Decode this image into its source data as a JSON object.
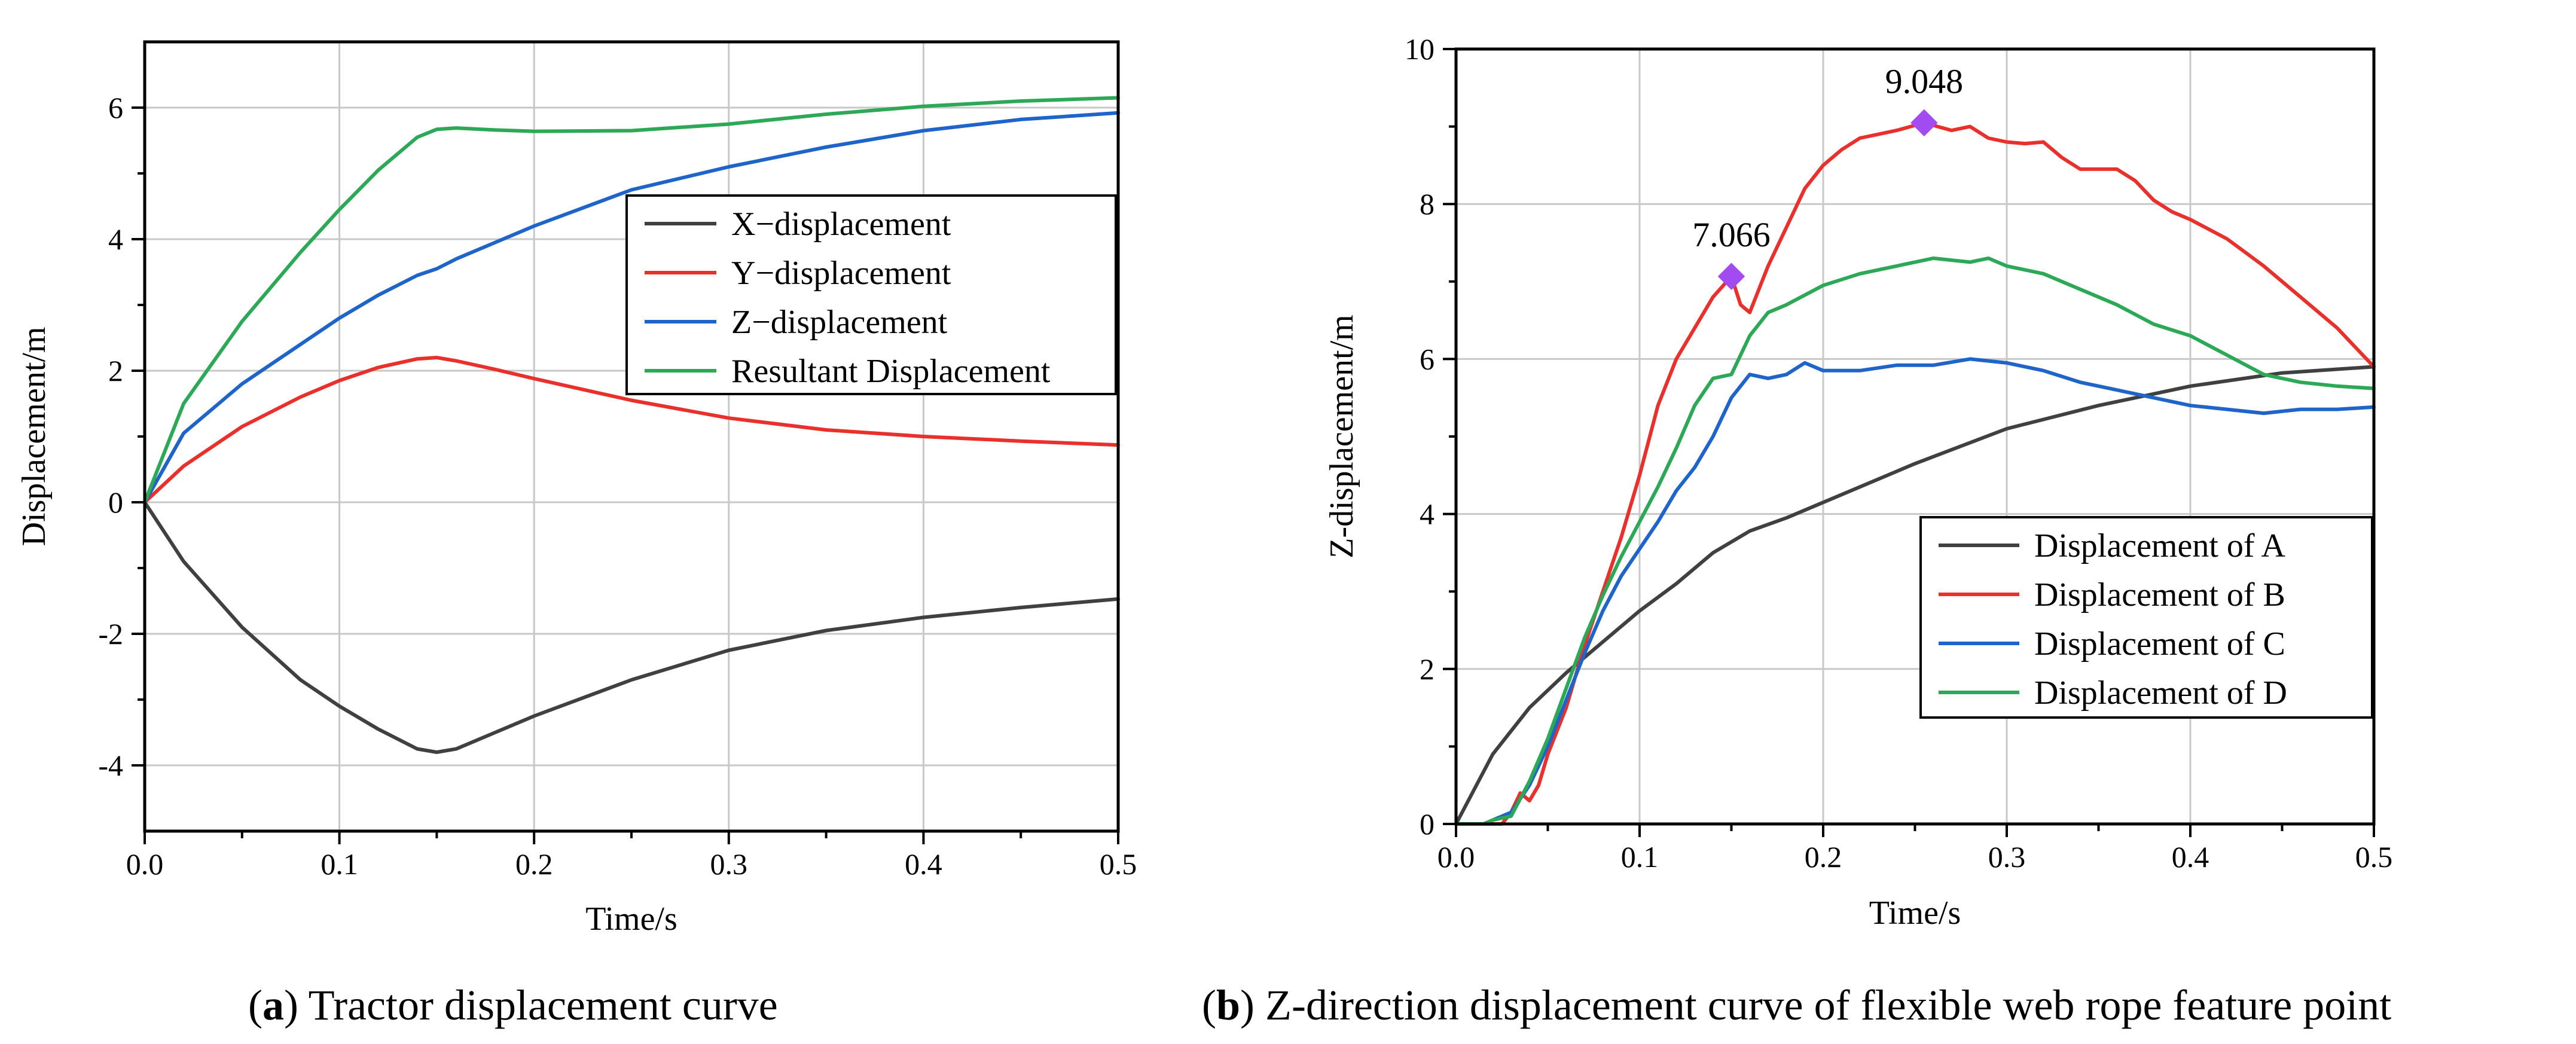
{
  "figure": {
    "caption_a": {
      "letter": "a",
      "text": "Tractor displacement curve"
    },
    "caption_b": {
      "letter": "b",
      "text": "Z-direction displacement curve of flexible web rope feature point"
    }
  },
  "chart_data": [
    {
      "id": "a",
      "type": "line",
      "title": "",
      "xlabel": "Time/s",
      "ylabel": "Displacement/m",
      "xlim": [
        0,
        0.5
      ],
      "ylim": [
        -5,
        7
      ],
      "xticks": [
        0.0,
        0.1,
        0.2,
        0.3,
        0.4,
        0.5
      ],
      "xtick_labels": [
        "0.0",
        "0.1",
        "0.2",
        "0.3",
        "0.4",
        "0.5"
      ],
      "yticks": [
        -4,
        -2,
        0,
        2,
        4,
        6
      ],
      "ytick_labels": [
        "-4",
        "-2",
        "0",
        "2",
        "4",
        "6"
      ],
      "grid": true,
      "legend_position": "center-right",
      "series": [
        {
          "name": "X−displacement",
          "color": "#404040",
          "x": [
            0,
            0.02,
            0.05,
            0.08,
            0.1,
            0.12,
            0.14,
            0.15,
            0.16,
            0.18,
            0.2,
            0.25,
            0.3,
            0.35,
            0.4,
            0.45,
            0.5
          ],
          "y": [
            0,
            -0.9,
            -1.9,
            -2.7,
            -3.1,
            -3.45,
            -3.75,
            -3.8,
            -3.75,
            -3.5,
            -3.25,
            -2.7,
            -2.25,
            -1.95,
            -1.75,
            -1.6,
            -1.47
          ]
        },
        {
          "name": "Y−displacement",
          "color": "#e8302c",
          "x": [
            0,
            0.02,
            0.05,
            0.08,
            0.1,
            0.12,
            0.14,
            0.15,
            0.16,
            0.18,
            0.2,
            0.25,
            0.3,
            0.35,
            0.4,
            0.45,
            0.5
          ],
          "y": [
            0,
            0.55,
            1.15,
            1.6,
            1.85,
            2.05,
            2.18,
            2.2,
            2.15,
            2.02,
            1.88,
            1.55,
            1.28,
            1.1,
            1.0,
            0.93,
            0.87
          ]
        },
        {
          "name": "Z−displacement",
          "color": "#1f64c8",
          "x": [
            0,
            0.02,
            0.05,
            0.08,
            0.1,
            0.12,
            0.14,
            0.15,
            0.16,
            0.18,
            0.2,
            0.25,
            0.3,
            0.35,
            0.4,
            0.45,
            0.5
          ],
          "y": [
            0,
            1.05,
            1.8,
            2.4,
            2.8,
            3.15,
            3.45,
            3.55,
            3.7,
            3.95,
            4.2,
            4.75,
            5.1,
            5.4,
            5.65,
            5.82,
            5.92
          ]
        },
        {
          "name": "Resultant Displacement",
          "color": "#2da857",
          "x": [
            0,
            0.02,
            0.05,
            0.08,
            0.1,
            0.12,
            0.14,
            0.15,
            0.16,
            0.18,
            0.2,
            0.25,
            0.3,
            0.35,
            0.4,
            0.45,
            0.5
          ],
          "y": [
            0,
            1.5,
            2.75,
            3.8,
            4.45,
            5.05,
            5.55,
            5.67,
            5.69,
            5.66,
            5.64,
            5.65,
            5.75,
            5.9,
            6.02,
            6.1,
            6.15
          ]
        }
      ]
    },
    {
      "id": "b",
      "type": "line",
      "title": "",
      "xlabel": "Time/s",
      "ylabel": "Z-displacement/m",
      "xlim": [
        0,
        0.5
      ],
      "ylim": [
        0,
        10
      ],
      "xticks": [
        0.0,
        0.1,
        0.2,
        0.3,
        0.4,
        0.5
      ],
      "xtick_labels": [
        "0.0",
        "0.1",
        "0.2",
        "0.3",
        "0.4",
        "0.5"
      ],
      "yticks": [
        0,
        2,
        4,
        6,
        8,
        10
      ],
      "ytick_labels": [
        "0",
        "2",
        "4",
        "6",
        "8",
        "10"
      ],
      "grid": true,
      "legend_position": "bottom-right",
      "annotations": [
        {
          "x": 0.15,
          "y": 7.066,
          "label": "7.066",
          "color": "#a24bf0"
        },
        {
          "x": 0.255,
          "y": 9.048,
          "label": "9.048",
          "color": "#a24bf0"
        }
      ],
      "series": [
        {
          "name": "Displacement of A",
          "color": "#404040",
          "x": [
            0,
            0.02,
            0.04,
            0.06,
            0.08,
            0.1,
            0.12,
            0.14,
            0.16,
            0.18,
            0.2,
            0.25,
            0.3,
            0.35,
            0.4,
            0.45,
            0.5
          ],
          "y": [
            0,
            0.9,
            1.5,
            1.95,
            2.35,
            2.75,
            3.1,
            3.5,
            3.78,
            3.95,
            4.15,
            4.65,
            5.1,
            5.4,
            5.65,
            5.82,
            5.9
          ]
        },
        {
          "name": "Displacement of B",
          "color": "#e8302c",
          "x": [
            0,
            0.025,
            0.03,
            0.035,
            0.04,
            0.045,
            0.05,
            0.06,
            0.07,
            0.08,
            0.09,
            0.1,
            0.11,
            0.12,
            0.13,
            0.14,
            0.15,
            0.155,
            0.16,
            0.165,
            0.17,
            0.18,
            0.19,
            0.2,
            0.21,
            0.22,
            0.23,
            0.24,
            0.255,
            0.27,
            0.28,
            0.29,
            0.3,
            0.31,
            0.32,
            0.33,
            0.34,
            0.36,
            0.37,
            0.38,
            0.39,
            0.4,
            0.42,
            0.44,
            0.46,
            0.48,
            0.5
          ],
          "y": [
            0,
            0,
            0.15,
            0.4,
            0.3,
            0.5,
            0.9,
            1.5,
            2.3,
            3.0,
            3.7,
            4.5,
            5.4,
            6.0,
            6.4,
            6.8,
            7.066,
            6.7,
            6.6,
            6.9,
            7.2,
            7.7,
            8.2,
            8.5,
            8.7,
            8.85,
            8.9,
            8.95,
            9.048,
            8.95,
            9.0,
            8.85,
            8.8,
            8.78,
            8.8,
            8.6,
            8.45,
            8.45,
            8.3,
            8.05,
            7.9,
            7.8,
            7.55,
            7.2,
            6.8,
            6.4,
            5.9
          ]
        },
        {
          "name": "Displacement of C",
          "color": "#1f64c8",
          "x": [
            0,
            0.015,
            0.02,
            0.03,
            0.04,
            0.05,
            0.06,
            0.07,
            0.08,
            0.09,
            0.1,
            0.11,
            0.12,
            0.13,
            0.14,
            0.15,
            0.16,
            0.17,
            0.18,
            0.19,
            0.2,
            0.22,
            0.24,
            0.26,
            0.28,
            0.3,
            0.32,
            0.34,
            0.36,
            0.38,
            0.4,
            0.42,
            0.44,
            0.46,
            0.48,
            0.5
          ],
          "y": [
            0,
            0,
            0.05,
            0.15,
            0.5,
            1.0,
            1.6,
            2.2,
            2.75,
            3.2,
            3.55,
            3.9,
            4.3,
            4.6,
            5.0,
            5.5,
            5.8,
            5.75,
            5.8,
            5.95,
            5.85,
            5.85,
            5.92,
            5.92,
            6.0,
            5.95,
            5.85,
            5.7,
            5.6,
            5.5,
            5.4,
            5.35,
            5.3,
            5.35,
            5.35,
            5.38
          ]
        },
        {
          "name": "Displacement of D",
          "color": "#2da857",
          "x": [
            0,
            0.015,
            0.02,
            0.03,
            0.04,
            0.05,
            0.06,
            0.07,
            0.08,
            0.09,
            0.1,
            0.11,
            0.12,
            0.13,
            0.14,
            0.15,
            0.16,
            0.17,
            0.18,
            0.2,
            0.22,
            0.24,
            0.26,
            0.28,
            0.29,
            0.3,
            0.32,
            0.34,
            0.36,
            0.38,
            0.4,
            0.42,
            0.44,
            0.46,
            0.48,
            0.5
          ],
          "y": [
            0,
            0,
            0.05,
            0.1,
            0.55,
            1.1,
            1.75,
            2.4,
            2.95,
            3.45,
            3.9,
            4.35,
            4.85,
            5.4,
            5.75,
            5.8,
            6.3,
            6.6,
            6.7,
            6.95,
            7.1,
            7.2,
            7.3,
            7.25,
            7.3,
            7.2,
            7.1,
            6.9,
            6.7,
            6.45,
            6.3,
            6.05,
            5.8,
            5.7,
            5.65,
            5.62
          ]
        }
      ]
    }
  ]
}
